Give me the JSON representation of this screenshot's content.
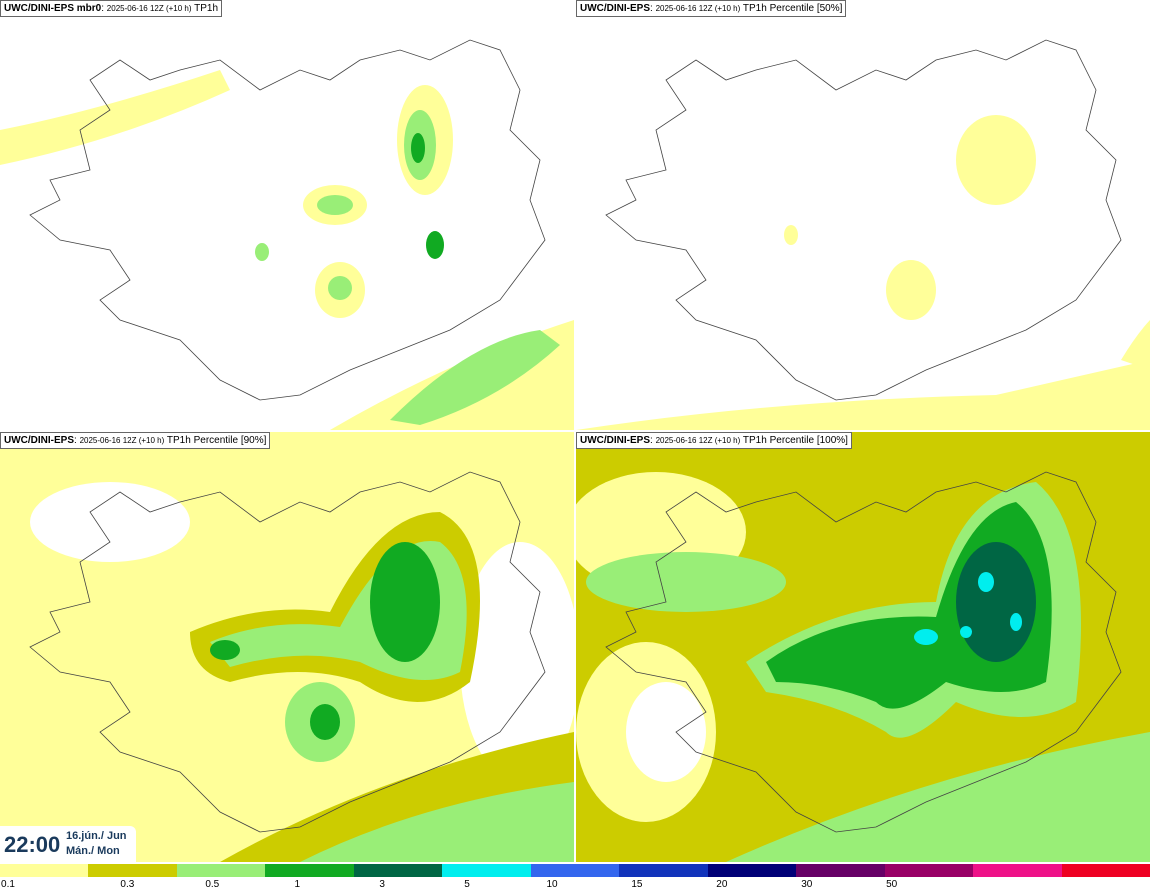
{
  "panels": [
    {
      "model": "UWC/DINI-EPS mbr0",
      "run": "2025-06-16 12Z (+10 h)",
      "field": "TP1h"
    },
    {
      "model": "UWC/DINI-EPS",
      "run": "2025-06-16 12Z (+10 h)",
      "field": "TP1h Percentile [50%]"
    },
    {
      "model": "UWC/DINI-EPS",
      "run": "2025-06-16 12Z (+10 h)",
      "field": "TP1h Percentile [90%]"
    },
    {
      "model": "UWC/DINI-EPS",
      "run": "2025-06-16 12Z (+10 h)",
      "field": "TP1h Percentile [100%]"
    }
  ],
  "valid_time": {
    "time": "22:00",
    "date_line": "16.jún./ Jun",
    "day_line": "Mán./ Mon"
  },
  "legend": {
    "colors": [
      "#ffff99",
      "#cccc00",
      "#99ee77",
      "#11aa22",
      "#006644",
      "#00eeee",
      "#3366ee",
      "#1133bb",
      "#000077",
      "#660066",
      "#990066",
      "#ee1188",
      "#ee0022"
    ],
    "ticks": [
      "0.1",
      "0.3",
      "0.5",
      "1",
      "3",
      "5",
      "10",
      "15",
      "20",
      "30",
      "50"
    ]
  }
}
